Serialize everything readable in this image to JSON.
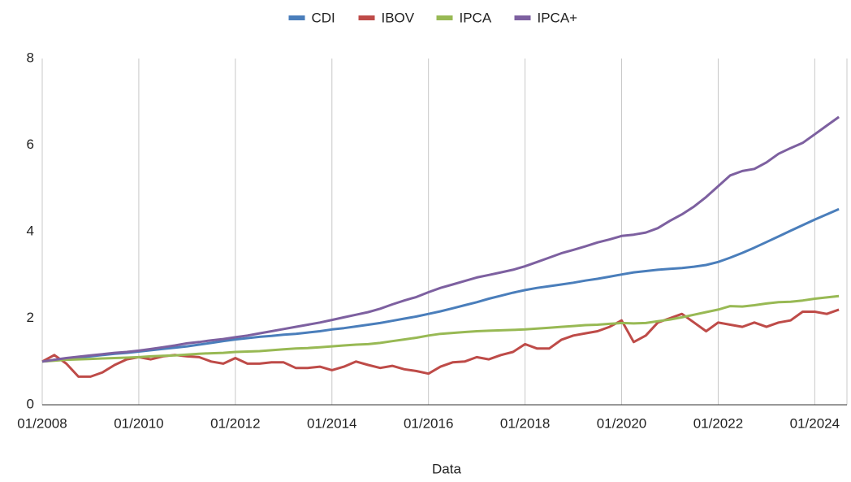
{
  "chart_data": {
    "type": "line",
    "x_label": "Data",
    "x": [
      "01/2008",
      "04/2008",
      "07/2008",
      "10/2008",
      "01/2009",
      "04/2009",
      "07/2009",
      "10/2009",
      "01/2010",
      "04/2010",
      "07/2010",
      "10/2010",
      "01/2011",
      "04/2011",
      "07/2011",
      "10/2011",
      "01/2012",
      "04/2012",
      "07/2012",
      "10/2012",
      "01/2013",
      "04/2013",
      "07/2013",
      "10/2013",
      "01/2014",
      "04/2014",
      "07/2014",
      "10/2014",
      "01/2015",
      "04/2015",
      "07/2015",
      "10/2015",
      "01/2016",
      "04/2016",
      "07/2016",
      "10/2016",
      "01/2017",
      "04/2017",
      "07/2017",
      "10/2017",
      "01/2018",
      "04/2018",
      "07/2018",
      "10/2018",
      "01/2019",
      "04/2019",
      "07/2019",
      "10/2019",
      "01/2020",
      "04/2020",
      "07/2020",
      "10/2020",
      "01/2021",
      "04/2021",
      "07/2021",
      "10/2021",
      "01/2022",
      "04/2022",
      "07/2022",
      "10/2022",
      "01/2023",
      "04/2023",
      "07/2023",
      "10/2023",
      "01/2024",
      "04/2024",
      "07/2024"
    ],
    "xlim": [
      "01/2008",
      "09/2024"
    ],
    "xticks": [
      "01/2008",
      "01/2010",
      "01/2012",
      "01/2014",
      "01/2016",
      "01/2018",
      "01/2020",
      "01/2022",
      "01/2024"
    ],
    "ylim": [
      0,
      8
    ],
    "yticks": [
      0,
      2,
      4,
      6,
      8
    ],
    "grid": "x",
    "legend": "top",
    "series": [
      {
        "name": "CDI",
        "color": "#4a7ebb",
        "values": [
          1.0,
          1.03,
          1.06,
          1.09,
          1.12,
          1.15,
          1.18,
          1.2,
          1.23,
          1.26,
          1.29,
          1.32,
          1.35,
          1.39,
          1.43,
          1.47,
          1.51,
          1.54,
          1.57,
          1.59,
          1.62,
          1.64,
          1.67,
          1.7,
          1.74,
          1.77,
          1.81,
          1.85,
          1.89,
          1.94,
          1.99,
          2.04,
          2.1,
          2.16,
          2.23,
          2.3,
          2.37,
          2.45,
          2.52,
          2.59,
          2.65,
          2.7,
          2.74,
          2.78,
          2.82,
          2.87,
          2.91,
          2.96,
          3.01,
          3.06,
          3.09,
          3.12,
          3.14,
          3.16,
          3.19,
          3.23,
          3.3,
          3.4,
          3.51,
          3.63,
          3.76,
          3.89,
          4.02,
          4.15,
          4.28,
          4.4,
          4.52
        ]
      },
      {
        "name": "IBOV",
        "color": "#be4b48",
        "values": [
          1.0,
          1.15,
          0.95,
          0.65,
          0.65,
          0.75,
          0.92,
          1.05,
          1.1,
          1.05,
          1.12,
          1.15,
          1.12,
          1.1,
          1.0,
          0.95,
          1.08,
          0.95,
          0.95,
          0.98,
          0.98,
          0.85,
          0.85,
          0.88,
          0.8,
          0.88,
          1.0,
          0.92,
          0.85,
          0.9,
          0.82,
          0.78,
          0.72,
          0.88,
          0.98,
          1.0,
          1.1,
          1.05,
          1.15,
          1.22,
          1.4,
          1.3,
          1.3,
          1.5,
          1.6,
          1.65,
          1.7,
          1.8,
          1.95,
          1.45,
          1.6,
          1.9,
          2.0,
          2.1,
          1.9,
          1.7,
          1.9,
          1.85,
          1.8,
          1.9,
          1.8,
          1.9,
          1.95,
          2.15,
          2.15,
          2.1,
          2.2
        ]
      },
      {
        "name": "IPCA",
        "color": "#98b954",
        "values": [
          1.0,
          1.02,
          1.04,
          1.05,
          1.06,
          1.07,
          1.08,
          1.09,
          1.1,
          1.12,
          1.13,
          1.14,
          1.16,
          1.18,
          1.19,
          1.2,
          1.22,
          1.23,
          1.24,
          1.26,
          1.28,
          1.3,
          1.31,
          1.33,
          1.35,
          1.37,
          1.39,
          1.4,
          1.43,
          1.47,
          1.51,
          1.55,
          1.6,
          1.64,
          1.66,
          1.68,
          1.7,
          1.71,
          1.72,
          1.73,
          1.74,
          1.76,
          1.78,
          1.8,
          1.82,
          1.84,
          1.85,
          1.87,
          1.89,
          1.88,
          1.89,
          1.93,
          1.97,
          2.02,
          2.08,
          2.14,
          2.2,
          2.28,
          2.27,
          2.3,
          2.34,
          2.37,
          2.38,
          2.41,
          2.45,
          2.48,
          2.51
        ]
      },
      {
        "name": "IPCA+",
        "color": "#7d60a0",
        "values": [
          1.0,
          1.04,
          1.08,
          1.11,
          1.14,
          1.17,
          1.2,
          1.22,
          1.25,
          1.29,
          1.33,
          1.37,
          1.42,
          1.45,
          1.49,
          1.52,
          1.56,
          1.6,
          1.65,
          1.7,
          1.75,
          1.8,
          1.85,
          1.9,
          1.96,
          2.02,
          2.08,
          2.14,
          2.22,
          2.32,
          2.41,
          2.49,
          2.6,
          2.7,
          2.78,
          2.86,
          2.94,
          3.0,
          3.06,
          3.12,
          3.2,
          3.3,
          3.4,
          3.5,
          3.58,
          3.66,
          3.75,
          3.82,
          3.9,
          3.93,
          3.98,
          4.08,
          4.25,
          4.4,
          4.58,
          4.8,
          5.05,
          5.3,
          5.4,
          5.45,
          5.6,
          5.8,
          5.93,
          6.05,
          6.25,
          6.45,
          6.65
        ]
      }
    ]
  }
}
